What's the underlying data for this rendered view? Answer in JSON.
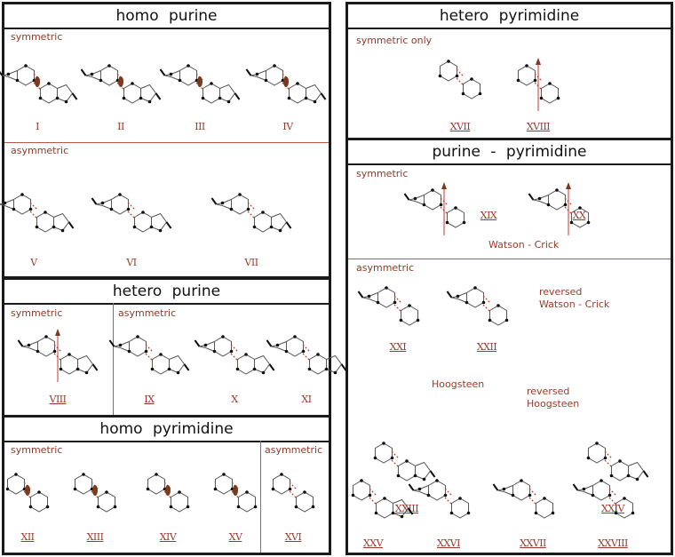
{
  "left": {
    "homo_purine": {
      "title": "homo  purine",
      "symmetric": "symmetric",
      "asymmetric": "asymmetric",
      "labels": [
        "I",
        "II",
        "III",
        "IV",
        "V",
        "VI",
        "VII"
      ]
    },
    "hetero_purine": {
      "title": "hetero  purine",
      "symmetric": "symmetric",
      "asymmetric": "asymmetric",
      "labels": [
        "VIII",
        "IX",
        "X",
        "XI"
      ]
    },
    "homo_pyrimidine": {
      "title": "homo  pyrimidine",
      "symmetric": "symmetric",
      "asymmetric": "asymmetric",
      "labels": [
        "XII",
        "XIII",
        "XIV",
        "XV",
        "XVI"
      ]
    }
  },
  "right": {
    "hetero_pyrimidine": {
      "title": "hetero  pyrimidine",
      "symmetric_only": "symmetric only",
      "labels": [
        "XVII",
        "XVIII"
      ]
    },
    "purine_pyrimidine": {
      "title": "purine - pyrimidine",
      "symmetric": "symmetric",
      "asymmetric": "asymmetric",
      "watson_crick": "Watson - Crick",
      "reversed_wc_1": "reversed",
      "reversed_wc_2": "Watson - Crick",
      "hoogsteen": "Hoogsteen",
      "reversed_h_1": "reversed",
      "reversed_h_2": "Hoogsteen",
      "labels": [
        "XIX",
        "XX",
        "XXI",
        "XXII",
        "XXIII",
        "XXIV",
        "XXV",
        "XXVI",
        "XXVII",
        "XXVIII"
      ]
    }
  },
  "colors": {
    "hbond": "#c0392b",
    "text_accent": "#9a3a2a",
    "ring": "#555555",
    "atom": "#111111",
    "dyad": "#7a3a20"
  }
}
